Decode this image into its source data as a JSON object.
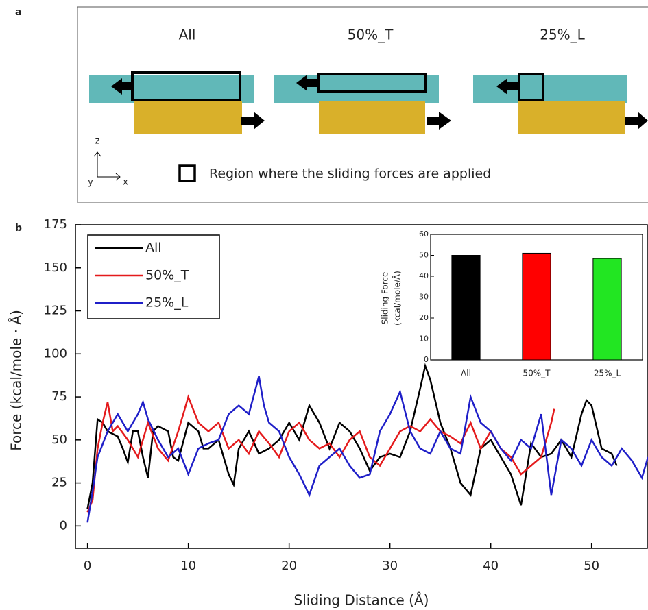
{
  "panel_a": {
    "label": "a",
    "titles": [
      "All",
      "50%_T",
      "25%_L"
    ],
    "axes": [
      "z",
      "y",
      "x"
    ],
    "legend": "Region where the sliding forces are applied"
  },
  "chart_data": [
    {
      "type": "line",
      "panel_label": "b",
      "xlabel": "Sliding Distance (Å)",
      "ylabel": "Force (kcal/mole · Å)",
      "xlim": [
        -1.2,
        55.6
      ],
      "ylim": [
        -13,
        175
      ],
      "xticks": [
        0,
        10,
        20,
        30,
        40,
        50
      ],
      "yticks": [
        0,
        25,
        50,
        75,
        100,
        125,
        150,
        175
      ],
      "legend": "upper left",
      "series": [
        {
          "name": "All",
          "color": "#000000",
          "x": [
            0,
            0.5,
            1,
            1.5,
            2,
            3,
            3.5,
            4,
            4.5,
            5,
            5.5,
            6,
            6.5,
            7,
            8,
            8.5,
            9,
            10,
            11,
            11.5,
            12,
            13,
            13.5,
            14,
            14.5,
            15,
            16,
            17,
            18,
            19,
            20,
            21,
            22,
            23,
            24,
            25,
            26,
            27,
            28,
            29,
            30,
            31,
            32,
            33,
            33.5,
            34,
            35,
            36,
            37,
            38,
            39,
            40,
            41,
            42,
            43,
            44,
            45,
            46,
            47,
            48,
            49,
            49.5,
            50,
            51,
            52,
            52.5
          ],
          "values": [
            10,
            25,
            62,
            60,
            55,
            52,
            45,
            37,
            55,
            55,
            40,
            28,
            55,
            58,
            55,
            40,
            38,
            60,
            55,
            45,
            45,
            50,
            40,
            30,
            24,
            45,
            55,
            42,
            45,
            50,
            60,
            50,
            70,
            60,
            45,
            60,
            55,
            45,
            32,
            40,
            42,
            40,
            55,
            80,
            93,
            85,
            60,
            45,
            25,
            18,
            45,
            50,
            40,
            30,
            12,
            48,
            40,
            42,
            50,
            40,
            65,
            73,
            70,
            45,
            42,
            35
          ]
        },
        {
          "name": "50%_T",
          "color": "#e41a1c",
          "x": [
            0,
            0.5,
            1,
            1.5,
            2,
            2.5,
            3,
            4,
            5,
            6,
            7,
            8,
            9,
            10,
            11,
            12,
            13,
            14,
            15,
            16,
            17,
            18,
            19,
            20,
            21,
            22,
            23,
            24,
            25,
            26,
            27,
            28,
            29,
            30,
            31,
            32,
            33,
            34,
            35,
            36,
            37,
            38,
            39,
            40,
            41,
            42,
            43,
            44,
            45,
            45.5,
            46,
            46.3
          ],
          "values": [
            8,
            15,
            45,
            60,
            72,
            55,
            58,
            50,
            40,
            60,
            45,
            38,
            55,
            75,
            60,
            55,
            60,
            45,
            50,
            42,
            55,
            48,
            40,
            55,
            60,
            50,
            45,
            48,
            40,
            50,
            55,
            40,
            35,
            45,
            55,
            58,
            55,
            62,
            55,
            52,
            48,
            60,
            45,
            55,
            45,
            40,
            30,
            35,
            40,
            50,
            60,
            68
          ]
        },
        {
          "name": "25%_L",
          "color": "#1f1fc8",
          "x": [
            0,
            0.5,
            1,
            2,
            3,
            4,
            5,
            5.5,
            6,
            7,
            8,
            9,
            10,
            11,
            12,
            13,
            14,
            15,
            16,
            17,
            17.5,
            18,
            19,
            20,
            21,
            22,
            23,
            24,
            25,
            26,
            27,
            28,
            29,
            30,
            31,
            32,
            33,
            34,
            35,
            36,
            37,
            38,
            39,
            40,
            41,
            42,
            43,
            44,
            45,
            46,
            47,
            48,
            49,
            50,
            51,
            52,
            53,
            54,
            55,
            55.6
          ],
          "values": [
            2,
            20,
            40,
            55,
            65,
            55,
            65,
            72,
            62,
            50,
            40,
            45,
            30,
            45,
            48,
            50,
            65,
            70,
            65,
            87,
            70,
            60,
            55,
            40,
            30,
            18,
            35,
            40,
            45,
            35,
            28,
            30,
            55,
            65,
            78,
            55,
            45,
            42,
            55,
            45,
            42,
            75,
            60,
            55,
            45,
            38,
            50,
            45,
            65,
            18,
            50,
            45,
            35,
            50,
            40,
            35,
            45,
            38,
            28,
            40
          ]
        }
      ]
    },
    {
      "type": "bar",
      "ylabel": [
        "Sliding Force",
        "(kcal/mole/Å)"
      ],
      "categories": [
        "All",
        "50%_T",
        "25%_L"
      ],
      "values": [
        50,
        51,
        48.5
      ],
      "colors": [
        "#000000",
        "#ff0000",
        "#22e622"
      ],
      "ylim": [
        0,
        60
      ],
      "yticks": [
        0,
        10,
        20,
        30,
        40,
        50,
        60
      ]
    }
  ]
}
